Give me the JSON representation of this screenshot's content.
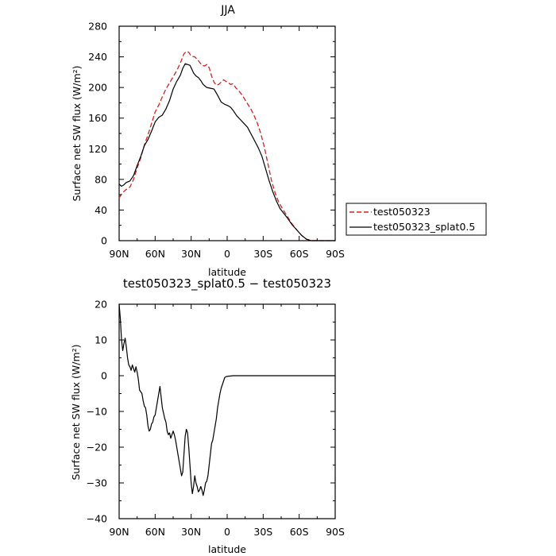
{
  "chart_data": [
    {
      "type": "line",
      "title": "JJA",
      "xlabel": "latitude",
      "ylabel": "Surface net SW flux (W/m²)",
      "xlim": [
        90,
        -90
      ],
      "ylim": [
        0,
        280
      ],
      "x_ticks": [
        90,
        60,
        30,
        0,
        -30,
        -60,
        -90
      ],
      "x_tick_labels": [
        "90N",
        "60N",
        "30N",
        "0",
        "30S",
        "60S",
        "90S"
      ],
      "y_ticks": [
        0,
        40,
        80,
        120,
        160,
        200,
        240,
        280
      ],
      "y_tick_labels": [
        "0",
        "40",
        "80",
        "120",
        "160",
        "200",
        "240",
        "280"
      ],
      "legend_position": "outside-right",
      "series": [
        {
          "name": "test050323",
          "color": "#d62020",
          "dash": "dashed",
          "points": [
            [
              90,
              56
            ],
            [
              87,
              63
            ],
            [
              84,
              67
            ],
            [
              81,
              70
            ],
            [
              78,
              80
            ],
            [
              75,
              95
            ],
            [
              72,
              108
            ],
            [
              69,
              125
            ],
            [
              66,
              138
            ],
            [
              63,
              153
            ],
            [
              60,
              168
            ],
            [
              57,
              177
            ],
            [
              54,
              188
            ],
            [
              51,
              198
            ],
            [
              48,
              206
            ],
            [
              45,
              214
            ],
            [
              42,
              222
            ],
            [
              39,
              232
            ],
            [
              36,
              244
            ],
            [
              34,
              247
            ],
            [
              32,
              246
            ],
            [
              30,
              241
            ],
            [
              27,
              240
            ],
            [
              24,
              235
            ],
            [
              21,
              229
            ],
            [
              19,
              228
            ],
            [
              17,
              230
            ],
            [
              15,
              226
            ],
            [
              13,
              215
            ],
            [
              11,
              207
            ],
            [
              9,
              203
            ],
            [
              7,
              204
            ],
            [
              5,
              207
            ],
            [
              3,
              210
            ],
            [
              1,
              208
            ],
            [
              -1,
              206
            ],
            [
              -3,
              204
            ],
            [
              -5,
              205
            ],
            [
              -7,
              200
            ],
            [
              -10,
              195
            ],
            [
              -13,
              189
            ],
            [
              -16,
              181
            ],
            [
              -19,
              174
            ],
            [
              -22,
              165
            ],
            [
              -25,
              154
            ],
            [
              -28,
              140
            ],
            [
              -31,
              122
            ],
            [
              -34,
              100
            ],
            [
              -37,
              78
            ],
            [
              -40,
              62
            ],
            [
              -43,
              50
            ],
            [
              -46,
              42
            ],
            [
              -50,
              32
            ],
            [
              -54,
              22
            ],
            [
              -58,
              14
            ],
            [
              -62,
              7
            ],
            [
              -66,
              2
            ],
            [
              -70,
              0
            ],
            [
              -75,
              0
            ],
            [
              -80,
              0
            ],
            [
              -90,
              0
            ]
          ]
        },
        {
          "name": "test050323_splat0.5",
          "color": "#000000",
          "dash": "solid",
          "points": [
            [
              90,
              74
            ],
            [
              88,
              71
            ],
            [
              86,
              73
            ],
            [
              84,
              76
            ],
            [
              81,
              78
            ],
            [
              78,
              85
            ],
            [
              75,
              98
            ],
            [
              72,
              110
            ],
            [
              69,
              124
            ],
            [
              66,
              132
            ],
            [
              63,
              143
            ],
            [
              60,
              155
            ],
            [
              57,
              161
            ],
            [
              54,
              164
            ],
            [
              51,
              172
            ],
            [
              48,
              183
            ],
            [
              45,
              198
            ],
            [
              42,
              208
            ],
            [
              39,
              216
            ],
            [
              37,
              225
            ],
            [
              35,
              231
            ],
            [
              33,
              230
            ],
            [
              31,
              229
            ],
            [
              28,
              219
            ],
            [
              26,
              215
            ],
            [
              24,
              213
            ],
            [
              22,
              209
            ],
            [
              20,
              204
            ],
            [
              17,
              200
            ],
            [
              14,
              199
            ],
            [
              11,
              198
            ],
            [
              8,
              190
            ],
            [
              5,
              181
            ],
            [
              2,
              178
            ],
            [
              -1,
              176
            ],
            [
              -3,
              174
            ],
            [
              -5,
              170
            ],
            [
              -8,
              163
            ],
            [
              -11,
              158
            ],
            [
              -14,
              153
            ],
            [
              -17,
              148
            ],
            [
              -20,
              139
            ],
            [
              -23,
              130
            ],
            [
              -26,
              121
            ],
            [
              -29,
              110
            ],
            [
              -32,
              94
            ],
            [
              -35,
              78
            ],
            [
              -38,
              64
            ],
            [
              -41,
              52
            ],
            [
              -44,
              42
            ],
            [
              -47,
              36
            ],
            [
              -50,
              30
            ],
            [
              -54,
              21
            ],
            [
              -58,
              14
            ],
            [
              -62,
              7
            ],
            [
              -66,
              2
            ],
            [
              -70,
              0
            ],
            [
              -75,
              0
            ],
            [
              -80,
              0
            ],
            [
              -90,
              0
            ]
          ]
        }
      ]
    },
    {
      "type": "line",
      "title": "test050323_splat0.5 − test050323",
      "xlabel": "latitude",
      "ylabel": "Surface net SW flux (W/m²)",
      "xlim": [
        90,
        -90
      ],
      "ylim": [
        -40,
        20
      ],
      "x_ticks": [
        90,
        60,
        30,
        0,
        -30,
        -60,
        -90
      ],
      "x_tick_labels": [
        "90N",
        "60N",
        "30N",
        "0",
        "30S",
        "60S",
        "90S"
      ],
      "y_ticks": [
        -40,
        -30,
        -20,
        -10,
        0,
        10,
        20
      ],
      "y_tick_labels": [
        "−40",
        "−30",
        "−20",
        "−10",
        "0",
        "10",
        "20"
      ],
      "series": [
        {
          "color": "#000000",
          "dash": "solid",
          "points": [
            [
              90,
              20
            ],
            [
              89,
              16
            ],
            [
              88,
              10
            ],
            [
              87,
              7
            ],
            [
              86,
              9
            ],
            [
              85,
              10.5
            ],
            [
              84,
              8
            ],
            [
              83,
              5
            ],
            [
              82,
              3
            ],
            [
              81,
              2.5
            ],
            [
              80,
              1.5
            ],
            [
              79,
              3
            ],
            [
              78,
              2
            ],
            [
              77,
              1
            ],
            [
              76,
              2.5
            ],
            [
              75,
              1
            ],
            [
              74,
              -1
            ],
            [
              73,
              -4
            ],
            [
              72,
              -4.5
            ],
            [
              71,
              -5
            ],
            [
              70,
              -7
            ],
            [
              69,
              -8.5
            ],
            [
              68,
              -9
            ],
            [
              67,
              -11
            ],
            [
              66,
              -14
            ],
            [
              65,
              -15.5
            ],
            [
              64,
              -15
            ],
            [
              63,
              -13.5
            ],
            [
              62,
              -13
            ],
            [
              61,
              -11.5
            ],
            [
              60,
              -11
            ],
            [
              59,
              -9
            ],
            [
              58,
              -7
            ],
            [
              57,
              -5
            ],
            [
              56,
              -3
            ],
            [
              55,
              -6
            ],
            [
              54,
              -9
            ],
            [
              53,
              -10.5
            ],
            [
              52,
              -12
            ],
            [
              51,
              -13
            ],
            [
              50,
              -15.5
            ],
            [
              49,
              -16.5
            ],
            [
              48,
              -16
            ],
            [
              47,
              -17.5
            ],
            [
              46,
              -16.5
            ],
            [
              45,
              -15.5
            ],
            [
              44,
              -16.5
            ],
            [
              43,
              -18
            ],
            [
              42,
              -20
            ],
            [
              41,
              -22
            ],
            [
              40,
              -24
            ],
            [
              39,
              -26
            ],
            [
              38,
              -28
            ],
            [
              37,
              -27
            ],
            [
              36,
              -22
            ],
            [
              35,
              -17
            ],
            [
              34,
              -15
            ],
            [
              33,
              -16
            ],
            [
              32,
              -20
            ],
            [
              31,
              -25
            ],
            [
              30,
              -30
            ],
            [
              29,
              -33
            ],
            [
              28,
              -31
            ],
            [
              27,
              -28
            ],
            [
              26,
              -30
            ],
            [
              25,
              -31
            ],
            [
              24,
              -32.5
            ],
            [
              23,
              -32
            ],
            [
              22,
              -31
            ],
            [
              21,
              -32
            ],
            [
              20,
              -33.5
            ],
            [
              19,
              -32
            ],
            [
              18,
              -30
            ],
            [
              17,
              -29.5
            ],
            [
              16,
              -28
            ],
            [
              15,
              -25
            ],
            [
              14,
              -22
            ],
            [
              13,
              -19
            ],
            [
              12,
              -18
            ],
            [
              11,
              -16
            ],
            [
              10,
              -14
            ],
            [
              9,
              -12
            ],
            [
              8,
              -9
            ],
            [
              7,
              -7
            ],
            [
              6,
              -5
            ],
            [
              5,
              -3.5
            ],
            [
              4,
              -2.5
            ],
            [
              3,
              -1.5
            ],
            [
              2,
              -0.5
            ],
            [
              1,
              -0.3
            ],
            [
              0,
              -0.2
            ],
            [
              -5,
              0
            ],
            [
              -10,
              0
            ],
            [
              -20,
              0
            ],
            [
              -30,
              0
            ],
            [
              -40,
              0
            ],
            [
              -50,
              0
            ],
            [
              -60,
              0
            ],
            [
              -70,
              0
            ],
            [
              -80,
              0
            ],
            [
              -90,
              0
            ]
          ]
        }
      ]
    }
  ]
}
